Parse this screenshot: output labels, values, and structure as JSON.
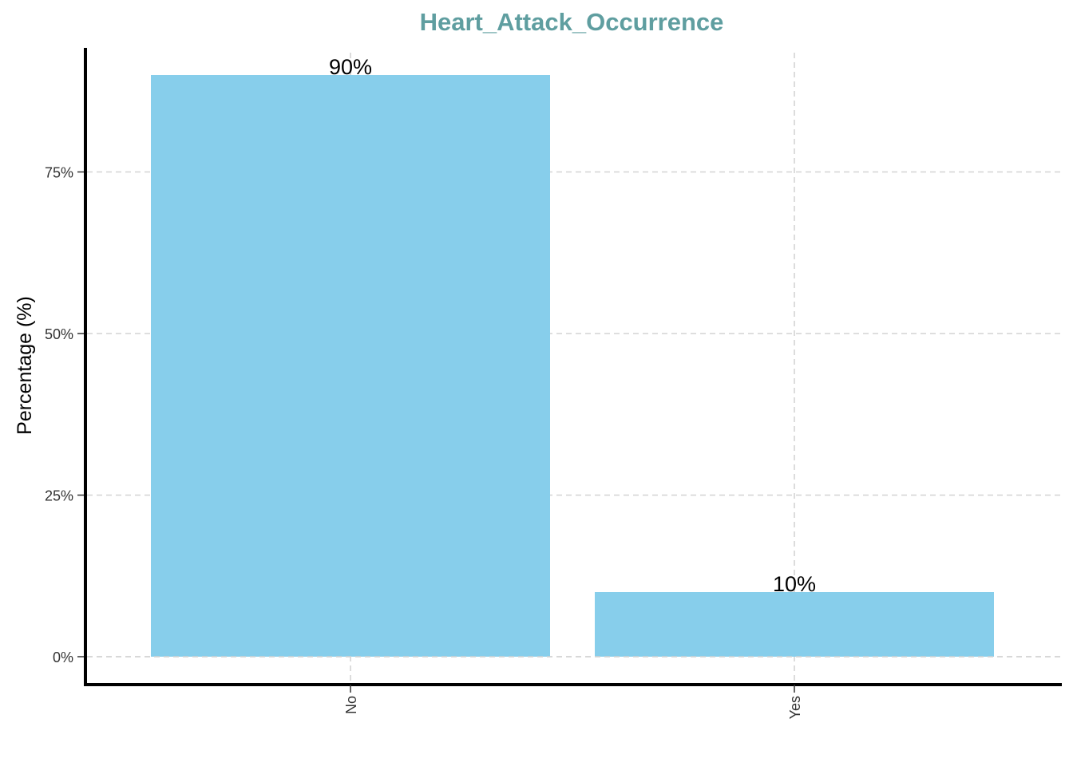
{
  "chart_data": {
    "type": "bar",
    "title": "Heart_Attack_Occurrence",
    "xlabel": "",
    "ylabel": "Percentage (%)",
    "categories": [
      "No",
      "Yes"
    ],
    "values": [
      90,
      10
    ],
    "data_labels": [
      "90%",
      "10%"
    ],
    "ylim": [
      0,
      95
    ],
    "y_ticks": [
      0,
      25,
      50,
      75
    ],
    "y_tick_labels": [
      "0%",
      "25%",
      "50%",
      "75%"
    ],
    "grid": true,
    "legend": "none",
    "colors": {
      "bar": "#87CEEB",
      "title": "#5F9EA0",
      "grid": "#d3d3d3",
      "axis": "#000000"
    }
  }
}
